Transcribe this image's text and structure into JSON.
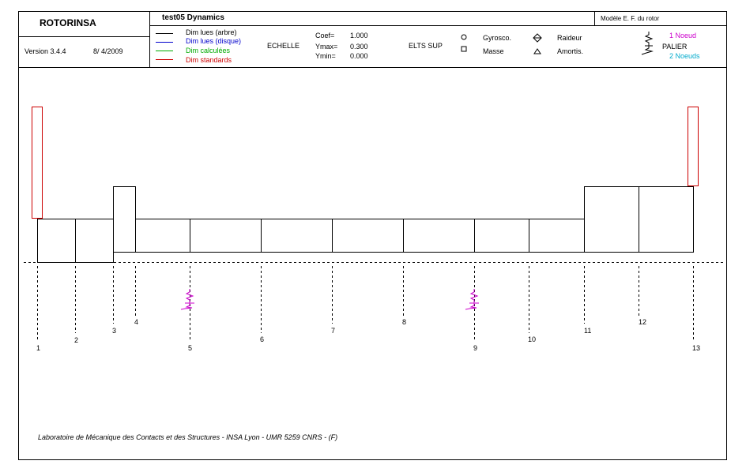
{
  "header": {
    "app_name": "ROTORINSA",
    "version": "Version 3.4.4",
    "date": "8/ 4/2009",
    "title": "test05 Dynamics",
    "model_label": "Modèle E. F. du rotor"
  },
  "legend": {
    "items": [
      {
        "label": "Dim lues (arbre)",
        "color": "#000000"
      },
      {
        "label": "Dim lues (disque)",
        "color": "#0000cc"
      },
      {
        "label": "Dim calculées",
        "color": "#00aa00"
      },
      {
        "label": "Dim standards",
        "color": "#cc0000"
      }
    ]
  },
  "scale": {
    "label": "ECHELLE",
    "coef_label": "Coef=",
    "coef_value": "1.000",
    "ymax_label": "Ymax=",
    "ymax_value": "0.300",
    "ymin_label": "Ymin=",
    "ymin_value": "0.000"
  },
  "elts": {
    "label": "ELTS SUP",
    "gyro": "Gyrosco.",
    "masse": "Masse",
    "raideur": "Raideur",
    "amortis": "Amortis."
  },
  "palier": {
    "label": "PALIER",
    "one_node": "1 Noeud",
    "one_node_color": "#cc00cc",
    "two_nodes": "2 Noeuds",
    "two_nodes_color": "#00aacc"
  },
  "nodes": [
    "1",
    "2",
    "3",
    "4",
    "5",
    "6",
    "7",
    "8",
    "9",
    "10",
    "11",
    "12",
    "13"
  ],
  "footer": "Laboratoire de Mécanique des Contacts et des Structures - INSA Lyon - UMR 5259 CNRS - (F)"
}
